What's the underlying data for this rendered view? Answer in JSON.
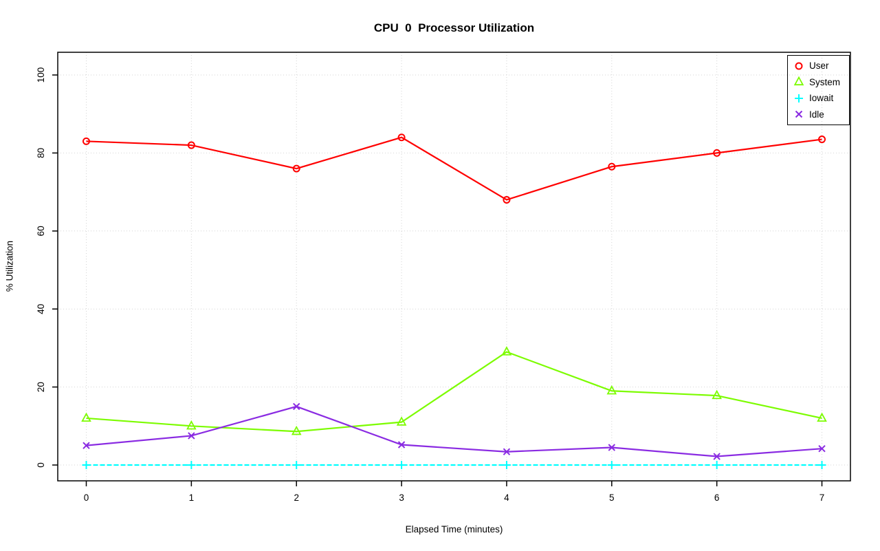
{
  "chart_data": {
    "type": "line",
    "title": "CPU  0  Processor Utilization",
    "xlabel": "Elapsed Time (minutes)",
    "ylabel": "% Utilization",
    "x": [
      0,
      1,
      2,
      3,
      4,
      5,
      6,
      7
    ],
    "x_ticks": [
      0,
      1,
      2,
      3,
      4,
      5,
      6,
      7
    ],
    "y_ticks": [
      0,
      20,
      40,
      60,
      80,
      100
    ],
    "xlim": [
      0,
      7
    ],
    "ylim": [
      0,
      100
    ],
    "grid": true,
    "grid_color": "#d3d3d3",
    "axis_color": "#000000",
    "legend_position": "top-right",
    "series": [
      {
        "name": "User",
        "color": "#ff0000",
        "marker": "circle",
        "dashed": false,
        "values": [
          83,
          82,
          76,
          84,
          68,
          76.5,
          80,
          83.5
        ]
      },
      {
        "name": "System",
        "color": "#7cfc00",
        "marker": "triangle",
        "dashed": false,
        "values": [
          12,
          10,
          8.6,
          11,
          29,
          19,
          17.8,
          12
        ]
      },
      {
        "name": "Iowait",
        "color": "#00ffff",
        "marker": "plus",
        "dashed": true,
        "values": [
          0,
          0,
          0,
          0,
          0,
          0,
          0,
          0
        ]
      },
      {
        "name": "Idle",
        "color": "#8a2be2",
        "marker": "x",
        "dashed": false,
        "values": [
          5,
          7.5,
          15,
          5.2,
          3.4,
          4.5,
          2.2,
          4.2
        ]
      }
    ]
  }
}
